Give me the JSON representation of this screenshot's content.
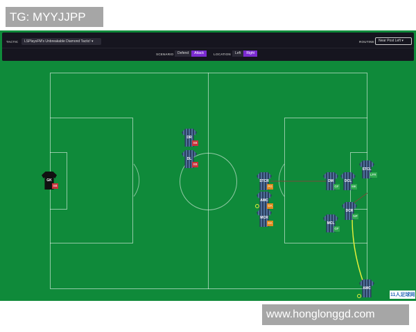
{
  "overlay_top": "TG: MYYJJPP",
  "overlay_bottom": "www.honglonggd.com",
  "watermark": "11人足球网",
  "toolbar": {
    "tactic_label": "TACTIC",
    "tactic_value": "LSPlaysFM's Unbreakable Diamond Tactic!",
    "routine_label": "ROUTINE",
    "routine_value": "Near Post Left",
    "scenario_label": "SCENARIO",
    "scenario_options": [
      "Defend",
      "Attack"
    ],
    "scenario_selected": "Attack",
    "location_label": "LOCATION",
    "location_options": [
      "Left",
      "Right"
    ],
    "location_selected": "Right"
  },
  "colors": {
    "pitch": "#0f8a3a",
    "selected": "#7b2bd1",
    "badge_red": "#c9323a",
    "badge_orange": "#e08a1e",
    "badge_green": "#2fa84f",
    "run_line": "#e6f03a"
  },
  "players": [
    {
      "pos": "GK",
      "badge": "SB",
      "color": "red"
    },
    {
      "pos": "DR",
      "badge": "SB",
      "color": "red"
    },
    {
      "pos": "DL",
      "badge": "SB",
      "color": "red"
    },
    {
      "pos": "STCR",
      "badge": "PG",
      "color": "orange"
    },
    {
      "pos": "AMC",
      "badge": "DA",
      "color": "orange"
    },
    {
      "pos": "MCR",
      "badge": "DA",
      "color": "orange"
    },
    {
      "pos": "DM",
      "badge": "GF",
      "color": "green"
    },
    {
      "pos": "DCL",
      "badge": "MK",
      "color": "green"
    },
    {
      "pos": "STCL",
      "badge": "LFR",
      "color": "green"
    },
    {
      "pos": "DCR",
      "badge": "NP",
      "color": "green"
    },
    {
      "pos": "MCL",
      "badge": "GF",
      "color": "green"
    },
    {
      "pos": "AMC",
      "badge": "",
      "color": "green"
    }
  ]
}
